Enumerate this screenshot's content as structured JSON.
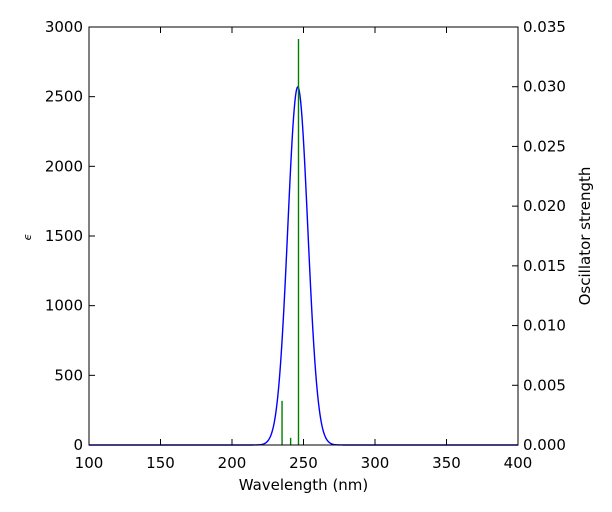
{
  "chart_data": {
    "type": "line",
    "xlabel": "Wavelength (nm)",
    "ylabel": "ϵ",
    "y2label": "Oscillator strength",
    "xlim": [
      100,
      400
    ],
    "ylim": [
      0,
      3000
    ],
    "y2lim": [
      0,
      0.035
    ],
    "x_ticks": [
      100,
      150,
      200,
      250,
      300,
      350,
      400
    ],
    "y_ticks": [
      0,
      500,
      1000,
      1500,
      2000,
      2500,
      3000
    ],
    "y2_ticks": [
      "0.000",
      "0.005",
      "0.010",
      "0.015",
      "0.020",
      "0.025",
      "0.030",
      "0.035"
    ],
    "grid": false,
    "series": [
      {
        "kind": "spectrum",
        "color": "#0000ff",
        "peak_x": 246,
        "peak_y": 2570,
        "sigma": 7
      },
      {
        "kind": "sticks",
        "color": "#008000",
        "x": [
          235,
          241,
          246.5
        ],
        "values": [
          0.0037,
          0.0006,
          0.034
        ]
      }
    ]
  }
}
